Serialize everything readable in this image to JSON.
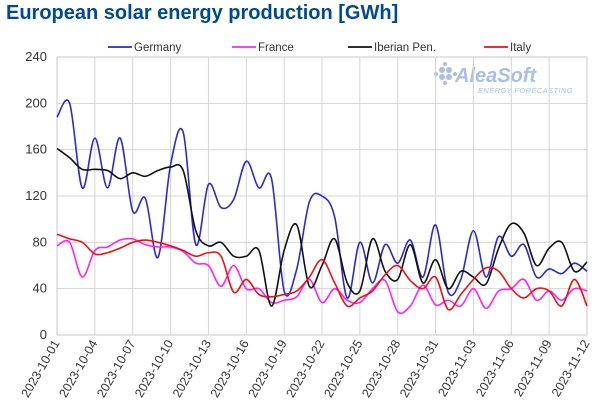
{
  "chart_data": {
    "type": "line",
    "title": "European solar energy production [GWh]",
    "xlabel": "",
    "ylabel": "",
    "ylim": [
      0,
      240
    ],
    "yticks": [
      0,
      40,
      80,
      120,
      160,
      200,
      240
    ],
    "grid": true,
    "legend_position": "top",
    "watermark": {
      "brand": "AleaSoft",
      "tagline": "ENERGY FORECASTING"
    },
    "categories": [
      "2023-10-01",
      "2023-10-02",
      "2023-10-03",
      "2023-10-04",
      "2023-10-05",
      "2023-10-06",
      "2023-10-07",
      "2023-10-08",
      "2023-10-09",
      "2023-10-10",
      "2023-10-11",
      "2023-10-12",
      "2023-10-13",
      "2023-10-14",
      "2023-10-15",
      "2023-10-16",
      "2023-10-17",
      "2023-10-18",
      "2023-10-19",
      "2023-10-20",
      "2023-10-21",
      "2023-10-22",
      "2023-10-23",
      "2023-10-24",
      "2023-10-25",
      "2023-10-26",
      "2023-10-27",
      "2023-10-28",
      "2023-10-29",
      "2023-10-30",
      "2023-10-31",
      "2023-11-01",
      "2023-11-02",
      "2023-11-03",
      "2023-11-04",
      "2023-11-05",
      "2023-11-06",
      "2023-11-07",
      "2023-11-08",
      "2023-11-09",
      "2023-11-10",
      "2023-11-11",
      "2023-11-12"
    ],
    "x_tick_labels": [
      "2023-10-01",
      "2023-10-04",
      "2023-10-07",
      "2023-10-10",
      "2023-10-13",
      "2023-10-16",
      "2023-10-19",
      "2023-10-22",
      "2023-10-25",
      "2023-10-28",
      "2023-10-31",
      "2023-11-03",
      "2023-11-06",
      "2023-11-09",
      "2023-11-12"
    ],
    "series": [
      {
        "name": "Germany",
        "color": "#2a2ad6",
        "values": [
          188,
          200,
          127,
          170,
          127,
          170,
          107,
          118,
          67,
          147,
          175,
          78,
          130,
          110,
          117,
          150,
          127,
          135,
          38,
          57,
          115,
          120,
          102,
          32,
          80,
          45,
          78,
          62,
          82,
          50,
          95,
          37,
          48,
          90,
          50,
          85,
          68,
          78,
          50,
          57,
          53,
          62,
          55
        ]
      },
      {
        "name": "France",
        "color": "#ff22ff",
        "values": [
          77,
          80,
          50,
          73,
          76,
          82,
          83,
          78,
          76,
          76,
          72,
          62,
          60,
          42,
          60,
          40,
          40,
          28,
          30,
          33,
          48,
          28,
          40,
          30,
          28,
          40,
          47,
          20,
          25,
          43,
          26,
          30,
          25,
          40,
          23,
          38,
          40,
          48,
          30,
          38,
          30,
          40,
          38
        ]
      },
      {
        "name": "Iberian Pen.",
        "color": "#111111",
        "values": [
          161,
          153,
          143,
          143,
          142,
          135,
          140,
          137,
          142,
          145,
          142,
          90,
          77,
          80,
          68,
          68,
          73,
          25,
          73,
          95,
          42,
          60,
          83,
          45,
          38,
          83,
          55,
          48,
          78,
          45,
          65,
          40,
          55,
          50,
          44,
          75,
          96,
          88,
          60,
          75,
          80,
          55,
          63
        ]
      },
      {
        "name": "Italy",
        "color": "#ee1111",
        "values": [
          87,
          83,
          80,
          70,
          71,
          75,
          80,
          82,
          80,
          77,
          73,
          68,
          71,
          68,
          37,
          48,
          35,
          33,
          35,
          38,
          50,
          65,
          45,
          25,
          32,
          38,
          52,
          60,
          47,
          40,
          50,
          22,
          35,
          48,
          58,
          55,
          40,
          32,
          40,
          38,
          25,
          48,
          25
        ]
      }
    ]
  }
}
